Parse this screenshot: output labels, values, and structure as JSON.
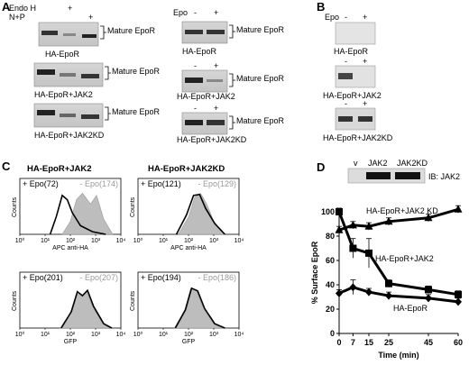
{
  "panels": {
    "A": "A",
    "B": "B",
    "C": "C",
    "D": "D"
  },
  "panel_a": {
    "left": {
      "rows": [
        {
          "label": "Endo H",
          "signs": [
            "",
            "+",
            ""
          ]
        },
        {
          "label": "N+P",
          "signs": [
            "",
            "",
            "+"
          ]
        }
      ],
      "blots": [
        {
          "caption": "HA-EpoR",
          "bracket_label": "Mature EpoR"
        },
        {
          "caption": "HA-EpoR+JAK2",
          "bracket_label": "Mature EpoR"
        },
        {
          "caption": "HA-EpoR+JAK2KD",
          "bracket_label": "Mature EpoR"
        }
      ]
    },
    "right": {
      "row_label": "Epo",
      "signs": [
        "-",
        "+"
      ],
      "blots": [
        {
          "caption": "HA-EpoR",
          "bracket_label": "Mature EpoR"
        },
        {
          "caption": "HA-EpoR+JAK2",
          "bracket_label": "Mature EpoR"
        },
        {
          "caption": "HA-EpoR+JAK2KD",
          "bracket_label": "Mature EpoR"
        }
      ]
    }
  },
  "panel_b": {
    "row_label": "Epo",
    "signs": [
      "-",
      "+"
    ],
    "blots": [
      {
        "caption": "HA-EpoR"
      },
      {
        "caption": "HA-EpoR+JAK2"
      },
      {
        "caption": "HA-EpoR+JAK2KD"
      }
    ]
  },
  "panel_c": {
    "headers": [
      "HA-EpoR+JAK2",
      "HA-EpoR+JAK2KD"
    ],
    "ylabel": "Counts",
    "ticks": [
      "10⁰",
      "10¹",
      "10²",
      "10³",
      "10⁴"
    ],
    "plots": [
      {
        "plus": "+ Epo(72)",
        "minus": "- Epo(174)",
        "xlabel": "APC anti-HA"
      },
      {
        "plus": "+ Epo(121)",
        "minus": "- Epo(129)",
        "xlabel": "APC anti-HA"
      },
      {
        "plus": "+ Epo(201)",
        "minus": "- Epo(207)",
        "xlabel": "GFP"
      },
      {
        "plus": "+ Epo(194)",
        "minus": "- Epo(186)",
        "xlabel": "GFP"
      }
    ]
  },
  "panel_d": {
    "blot": {
      "lanes": [
        "v",
        "JAK2",
        "JAK2KD"
      ],
      "label": "IB: JAK2"
    },
    "chart_data": {
      "type": "line",
      "xlabel": "Time (min)",
      "ylabel": "% Surface EpoR",
      "x": [
        0,
        7,
        15,
        25,
        45,
        60
      ],
      "xlim": [
        0,
        60
      ],
      "ylim": [
        0,
        100
      ],
      "yticks": [
        0,
        20,
        40,
        60,
        80,
        100
      ],
      "series": [
        {
          "name": "HA-EpoR+JAK2 KD",
          "values": [
            85,
            89,
            88,
            92,
            95,
            102
          ],
          "marker": "triangle"
        },
        {
          "name": "HA-EpoR+JAK2",
          "values": [
            100,
            70,
            66,
            41,
            36,
            32
          ],
          "marker": "square"
        },
        {
          "name": "HA-EpoR",
          "values": [
            33,
            38,
            34,
            31,
            29,
            26
          ],
          "marker": "diamond"
        }
      ],
      "errors": [
        [
          3,
          3,
          3,
          3,
          3,
          3
        ],
        [
          3,
          8,
          12,
          3,
          3,
          3
        ],
        [
          3,
          6,
          3,
          3,
          3,
          3
        ]
      ]
    }
  }
}
